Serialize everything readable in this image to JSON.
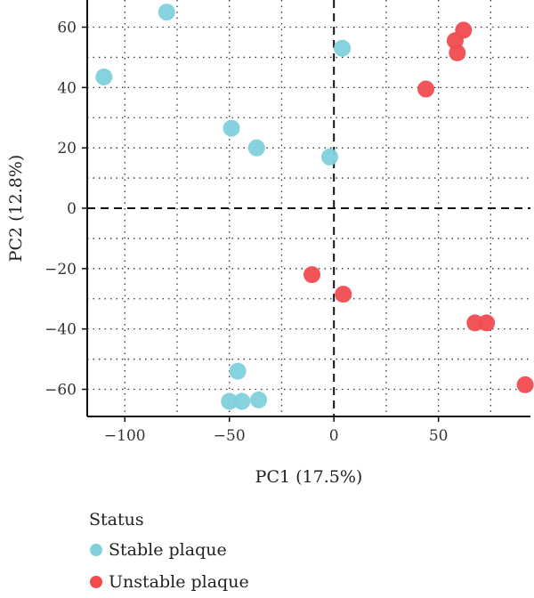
{
  "chart_data": {
    "type": "scatter",
    "xlabel": "PC1 (17.5%)",
    "ylabel": "PC2 (12.8%)",
    "xlim": [
      -118,
      94
    ],
    "ylim": [
      -69,
      69
    ],
    "x_ticks": [
      -100,
      -50,
      0,
      50
    ],
    "y_ticks": [
      -60,
      -40,
      -20,
      0,
      20,
      40,
      60
    ],
    "grid": "dotted",
    "reference_lines": {
      "x": 0,
      "y": 0,
      "style": "dashed"
    },
    "legend": {
      "title": "Status",
      "position": "bottom-left"
    },
    "series": [
      {
        "name": "Stable plaque",
        "color": "#7fd0dc",
        "points": [
          [
            -80,
            65
          ],
          [
            4,
            53
          ],
          [
            -110,
            43.5
          ],
          [
            -49,
            26.5
          ],
          [
            -37,
            20
          ],
          [
            -2,
            17
          ],
          [
            -46,
            -54
          ],
          [
            -50,
            -64
          ],
          [
            -44,
            -64
          ],
          [
            -36,
            -63.5
          ]
        ]
      },
      {
        "name": "Unstable plaque",
        "color": "#f04c50",
        "points": [
          [
            62,
            59
          ],
          [
            58,
            55.5
          ],
          [
            59,
            51.5
          ],
          [
            44,
            39.5
          ],
          [
            -10.5,
            -22
          ],
          [
            4.5,
            -28.5
          ],
          [
            67.5,
            -38
          ],
          [
            73,
            -38
          ],
          [
            91.5,
            -58.5
          ]
        ]
      }
    ]
  }
}
